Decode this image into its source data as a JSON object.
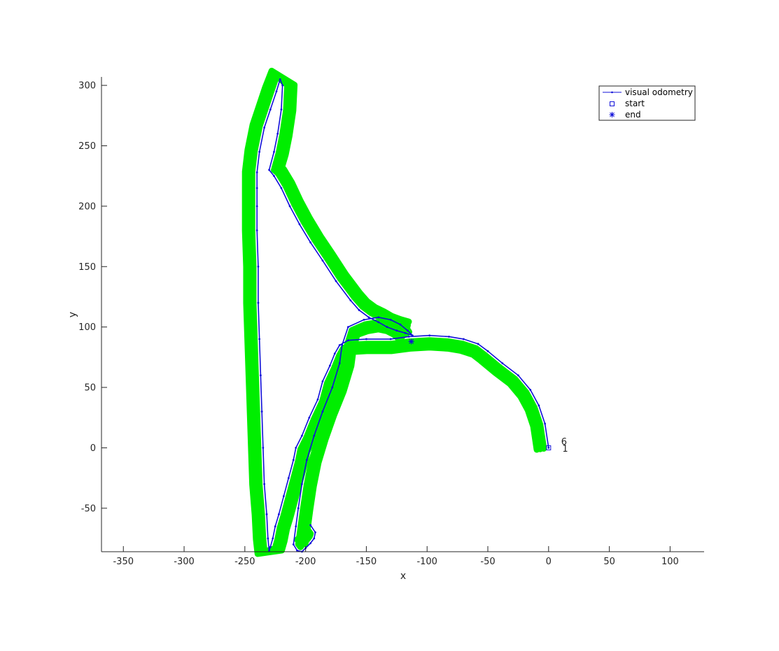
{
  "chart_data": {
    "type": "line",
    "xlabel": "x",
    "ylabel": "y",
    "xlim": [
      -368,
      128
    ],
    "ylim": [
      -86,
      307
    ],
    "xticks": [
      -350,
      -300,
      -250,
      -200,
      -150,
      -100,
      -50,
      0,
      50,
      100
    ],
    "yticks": [
      -50,
      0,
      50,
      100,
      150,
      200,
      250,
      300
    ],
    "grid": false,
    "legend_position": "top-right",
    "colors": {
      "odometry": "#1010d8",
      "markers": "#00ee00",
      "axis": "#262626"
    },
    "series": [
      {
        "name": "visual odometry",
        "x": [
          0,
          -3,
          -8,
          -15,
          -25,
          -38,
          -50,
          -58,
          -70,
          -82,
          -98,
          -115,
          -130,
          -150,
          -165,
          -172,
          -176,
          -180,
          -186,
          -190,
          -197,
          -203,
          -208,
          -210,
          -214,
          -218,
          -222,
          -225,
          -227,
          -229,
          -230,
          -231,
          -232,
          -234,
          -235,
          -236,
          -237,
          -238,
          -239,
          -239,
          -240,
          -240,
          -240,
          -240,
          -238,
          -234,
          -229,
          -224,
          -221,
          -219,
          -220,
          -223,
          -226,
          -230,
          -226,
          -220,
          -213,
          -205,
          -196,
          -186,
          -175,
          -163,
          -156,
          -148,
          -140,
          -133,
          -125,
          -118,
          -112,
          -116,
          -122,
          -130,
          -140,
          -152,
          -165,
          -170,
          -172,
          -178,
          -186,
          -193,
          -199,
          -203,
          -206,
          -208,
          -210,
          -207,
          -203,
          -200,
          -196,
          -193,
          -192,
          -196
        ],
        "y": [
          0,
          20,
          35,
          48,
          60,
          70,
          80,
          86,
          90,
          92,
          93,
          92,
          90,
          90,
          89,
          85,
          78,
          68,
          55,
          40,
          25,
          10,
          0,
          -10,
          -25,
          -40,
          -55,
          -65,
          -75,
          -82,
          -85,
          -75,
          -55,
          -30,
          0,
          30,
          60,
          90,
          120,
          150,
          180,
          200,
          215,
          228,
          245,
          265,
          280,
          295,
          305,
          300,
          280,
          260,
          245,
          230,
          225,
          215,
          200,
          185,
          170,
          155,
          138,
          122,
          114,
          108,
          104,
          100,
          97,
          95,
          93,
          97,
          102,
          106,
          108,
          106,
          100,
          85,
          70,
          50,
          30,
          10,
          -10,
          -30,
          -50,
          -65,
          -80,
          -85,
          -86,
          -83,
          -79,
          -75,
          -70,
          -64
        ]
      }
    ],
    "legend": [
      {
        "label": "visual odometry",
        "marker": "line-dot"
      },
      {
        "label": "start",
        "marker": "square"
      },
      {
        "label": "end",
        "marker": "asterisk"
      }
    ],
    "start_point": {
      "x": 0,
      "y": 0
    },
    "end_point": {
      "x": -113,
      "y": 88
    },
    "green_labels": [
      {
        "text": "6",
        "x": 8,
        "y": 5
      },
      {
        "text": "1",
        "x": 9,
        "y": -1
      }
    ]
  }
}
